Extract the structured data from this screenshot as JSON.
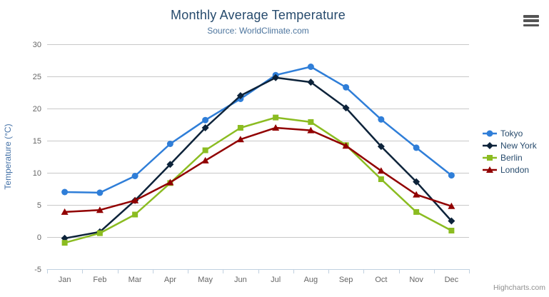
{
  "chart_data": {
    "type": "line",
    "title": "Monthly Average Temperature",
    "subtitle": "Source: WorldClimate.com",
    "xlabel": "",
    "ylabel": "Temperature (°C)",
    "categories": [
      "Jan",
      "Feb",
      "Mar",
      "Apr",
      "May",
      "Jun",
      "Jul",
      "Aug",
      "Sep",
      "Oct",
      "Nov",
      "Dec"
    ],
    "ylim": [
      -5,
      30
    ],
    "yticks": [
      -5,
      0,
      5,
      10,
      15,
      20,
      25,
      30
    ],
    "grid": true,
    "legend_position": "right",
    "series": [
      {
        "name": "Tokyo",
        "color": "#2f7ed8",
        "marker": "circle",
        "values": [
          7.0,
          6.9,
          9.5,
          14.5,
          18.2,
          21.5,
          25.2,
          26.5,
          23.3,
          18.3,
          13.9,
          9.6
        ]
      },
      {
        "name": "New York",
        "color": "#0d233a",
        "marker": "diamond",
        "values": [
          -0.2,
          0.8,
          5.7,
          11.3,
          17.0,
          22.0,
          24.8,
          24.1,
          20.1,
          14.1,
          8.6,
          2.5
        ]
      },
      {
        "name": "Berlin",
        "color": "#8bbc21",
        "marker": "square",
        "values": [
          -0.9,
          0.6,
          3.5,
          8.4,
          13.5,
          17.0,
          18.6,
          17.9,
          14.3,
          9.0,
          3.9,
          1.0
        ]
      },
      {
        "name": "London",
        "color": "#910000",
        "marker": "triangle",
        "values": [
          3.9,
          4.2,
          5.7,
          8.5,
          11.9,
          15.2,
          17.0,
          16.6,
          14.2,
          10.3,
          6.6,
          4.8
        ]
      }
    ]
  },
  "credits": "Highcharts.com",
  "export_menu_icon": "hamburger-icon",
  "colors": {
    "title": "#274b6d",
    "subtitle": "#4d759e",
    "axis_labels": "#666666",
    "y_axis_title": "#4572a7",
    "gridline": "#c8c8c8",
    "axis_line": "#c0d0e0",
    "credits": "#8f8f8f"
  }
}
